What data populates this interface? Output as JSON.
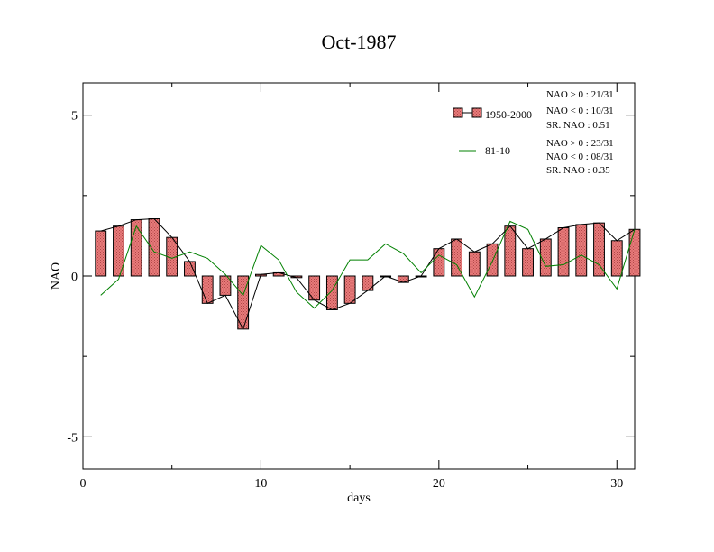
{
  "chart_data": {
    "type": "bar",
    "title": "Oct-1987",
    "xlabel": "days",
    "ylabel": "NAO",
    "xlim": [
      0,
      31
    ],
    "ylim": [
      -6,
      6
    ],
    "x_ticks": [
      0,
      10,
      20,
      30
    ],
    "y_ticks": [
      5,
      0,
      -5
    ],
    "grid": false,
    "legend_position": "top-right",
    "x": [
      1,
      2,
      3,
      4,
      5,
      6,
      7,
      8,
      9,
      10,
      11,
      12,
      13,
      14,
      15,
      16,
      17,
      18,
      19,
      20,
      21,
      22,
      23,
      24,
      25,
      26,
      27,
      28,
      29,
      30,
      31
    ],
    "series": [
      {
        "name": "1950-2000",
        "kind": "bar",
        "color": "#e87a7a",
        "values": [
          1.4,
          1.55,
          1.75,
          1.78,
          1.2,
          0.45,
          -0.85,
          -0.6,
          -1.65,
          0.05,
          0.1,
          -0.05,
          -0.75,
          -1.05,
          -0.85,
          -0.45,
          0.0,
          -0.2,
          0.0,
          0.85,
          1.15,
          0.75,
          1.0,
          1.55,
          0.85,
          1.15,
          1.5,
          1.6,
          1.65,
          1.1,
          1.45
        ]
      },
      {
        "name": "81-10",
        "kind": "line",
        "color": "#008000",
        "values": [
          -0.6,
          -0.1,
          1.55,
          0.75,
          0.55,
          0.75,
          0.55,
          0.05,
          -0.6,
          0.95,
          0.5,
          -0.5,
          -1.0,
          -0.45,
          0.5,
          0.5,
          1.0,
          0.7,
          0.1,
          0.65,
          0.35,
          -0.65,
          0.45,
          1.7,
          1.45,
          0.3,
          0.35,
          0.65,
          0.35,
          -0.4,
          1.45
        ]
      }
    ],
    "stats": [
      {
        "series": "1950-2000",
        "lines": [
          "NAO > 0 : 21/31",
          "NAO < 0 : 10/31",
          "SR. NAO :  0.51"
        ]
      },
      {
        "series": "81-10",
        "lines": [
          "NAO > 0 : 23/31",
          "NAO < 0 : 08/31",
          "SR. NAO :  0.35"
        ]
      }
    ]
  }
}
